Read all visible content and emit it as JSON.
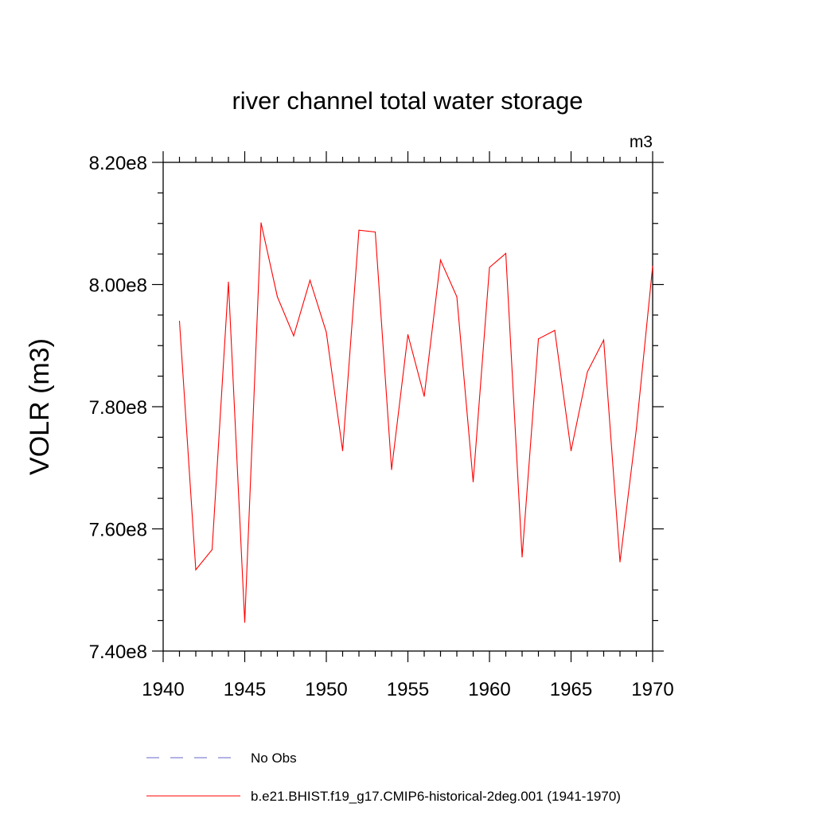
{
  "chart_data": {
    "type": "line",
    "title": "river channel total water storage",
    "units": "m3",
    "xlabel": "",
    "ylabel": "VOLR  (m3)",
    "xlim": [
      1940,
      1970
    ],
    "ylim": [
      740000000.0,
      820000000.0
    ],
    "x_ticks": [
      1940,
      1945,
      1950,
      1955,
      1960,
      1965,
      1970
    ],
    "x_tick_labels": [
      "1940",
      "1945",
      "1950",
      "1955",
      "1960",
      "1965",
      "1970"
    ],
    "y_ticks": [
      740000000.0,
      760000000.0,
      780000000.0,
      800000000.0,
      820000000.0
    ],
    "y_tick_labels": [
      "7.40e8",
      "7.60e8",
      "7.80e8",
      "8.00e8",
      "8.20e8"
    ],
    "y_minor_step": 5000000.0,
    "x_minor_step": 1,
    "grid": false,
    "series": [
      {
        "name": "b.e21.BHIST.f19_g17.CMIP6-historical-2deg.001 (1941-1970)",
        "color": "#ff0000",
        "style": "solid",
        "x": [
          1941,
          1942,
          1943,
          1944,
          1945,
          1946,
          1947,
          1948,
          1949,
          1950,
          1951,
          1952,
          1953,
          1954,
          1955,
          1956,
          1957,
          1958,
          1959,
          1960,
          1961,
          1962,
          1963,
          1964,
          1965,
          1966,
          1967,
          1968,
          1969,
          1970
        ],
        "values": [
          794000000.0,
          753300000.0,
          756600000.0,
          800400000.0,
          744700000.0,
          810100000.0,
          798000000.0,
          791600000.0,
          800700000.0,
          792200000.0,
          772800000.0,
          808900000.0,
          808600000.0,
          769700000.0,
          791800000.0,
          781700000.0,
          804000000.0,
          798000000.0,
          767700000.0,
          802800000.0,
          805100000.0,
          755400000.0,
          791100000.0,
          792500000.0,
          772800000.0,
          785700000.0,
          790900000.0,
          754600000.0,
          776300000.0,
          803000000.0
        ]
      }
    ],
    "legend": [
      {
        "label": "No Obs",
        "color": "#6666cc",
        "style": "dashed"
      },
      {
        "label": "b.e21.BHIST.f19_g17.CMIP6-historical-2deg.001 (1941-1970)",
        "color": "#ff0000",
        "style": "solid"
      }
    ]
  }
}
